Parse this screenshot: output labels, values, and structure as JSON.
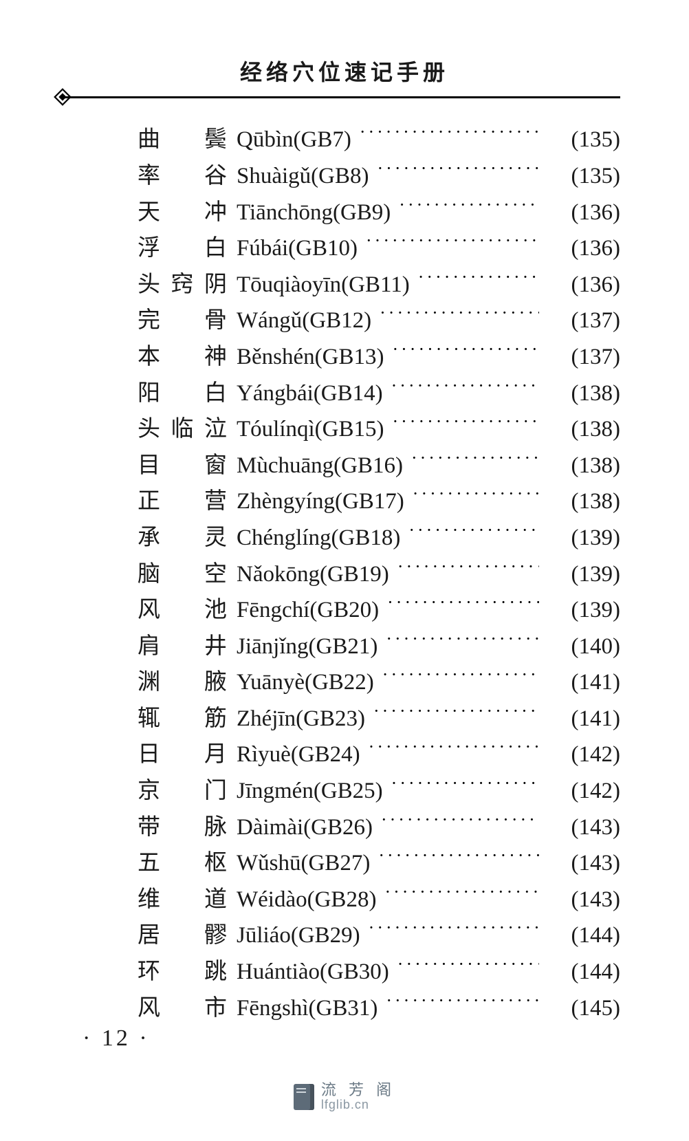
{
  "header": {
    "title": "经络穴位速记手册"
  },
  "text_color": "#1a1a1a",
  "rule_color": "#000000",
  "background_color": "#ffffff",
  "fontsize": {
    "title": 32,
    "entry": 33,
    "page_number": 34,
    "footer_cn": 22,
    "footer_url": 18
  },
  "entries": [
    {
      "cjk": "曲　鬓",
      "pinyin": "Qūbìn(GB7)",
      "page": "(135)"
    },
    {
      "cjk": "率　谷",
      "pinyin": "Shuàigǔ(GB8)",
      "page": "(135)"
    },
    {
      "cjk": "天　冲",
      "pinyin": "Tiānchōng(GB9)",
      "page": "(136)"
    },
    {
      "cjk": "浮　白",
      "pinyin": "Fúbái(GB10)",
      "page": "(136)"
    },
    {
      "cjk": "头窍阴",
      "pinyin": "Tōuqiàoyīn(GB11)",
      "page": "(136)"
    },
    {
      "cjk": "完　骨",
      "pinyin": "Wángǔ(GB12)",
      "page": "(137)"
    },
    {
      "cjk": "本　神",
      "pinyin": "Běnshén(GB13)",
      "page": "(137)"
    },
    {
      "cjk": "阳　白",
      "pinyin": "Yángbái(GB14)",
      "page": "(138)"
    },
    {
      "cjk": "头临泣",
      "pinyin": "Tóulínqì(GB15)",
      "page": "(138)"
    },
    {
      "cjk": "目　窗",
      "pinyin": "Mùchuāng(GB16)",
      "page": "(138)"
    },
    {
      "cjk": "正　营",
      "pinyin": "Zhèngyíng(GB17)",
      "page": "(138)"
    },
    {
      "cjk": "承　灵",
      "pinyin": "Chénglíng(GB18)",
      "page": "(139)"
    },
    {
      "cjk": "脑　空",
      "pinyin": "Nǎokōng(GB19)",
      "page": "(139)"
    },
    {
      "cjk": "风　池",
      "pinyin": "Fēngchí(GB20)",
      "page": "(139)"
    },
    {
      "cjk": "肩　井",
      "pinyin": "Jiānjǐng(GB21)",
      "page": "(140)"
    },
    {
      "cjk": "渊　腋",
      "pinyin": "Yuānyè(GB22)",
      "page": "(141)"
    },
    {
      "cjk": "辄　筋",
      "pinyin": "Zhéjīn(GB23)",
      "page": "(141)"
    },
    {
      "cjk": "日　月",
      "pinyin": "Rìyuè(GB24)",
      "page": "(142)"
    },
    {
      "cjk": "京　门",
      "pinyin": "Jīngmén(GB25)",
      "page": "(142)"
    },
    {
      "cjk": "带　脉",
      "pinyin": "Dàimài(GB26)",
      "page": "(143)"
    },
    {
      "cjk": "五　枢",
      "pinyin": "Wǔshū(GB27)",
      "page": "(143)"
    },
    {
      "cjk": "维　道",
      "pinyin": "Wéidào(GB28)",
      "page": "(143)"
    },
    {
      "cjk": "居　髎",
      "pinyin": "Jūliáo(GB29)",
      "page": "(144)"
    },
    {
      "cjk": "环　跳",
      "pinyin": "Huántiào(GB30)",
      "page": "(144)"
    },
    {
      "cjk": "风　市",
      "pinyin": "Fēngshì(GB31)",
      "page": "(145)"
    }
  ],
  "page_number": "· 12 ·",
  "footer": {
    "cn": "流 芳 阁",
    "url": "lfglib.cn",
    "icon_color": "#5d6b78",
    "text_color": "#6b7a86"
  }
}
